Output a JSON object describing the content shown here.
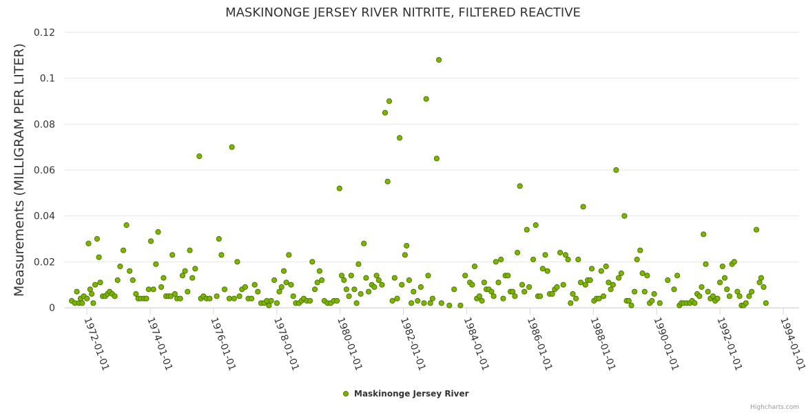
{
  "chart_data": {
    "type": "scatter",
    "title": "MASKINONGE JERSEY RIVER NITRITE, FILTERED REACTIVE",
    "xlabel": "",
    "ylabel": "Measurements (MILLIGRAM PER LITER)",
    "ylim": [
      0,
      0.12
    ],
    "yticks": [
      0,
      0.02,
      0.04,
      0.06,
      0.08,
      0.1,
      0.12
    ],
    "ytick_labels": [
      "0",
      "0.02",
      "0.04",
      "0.06",
      "0.08",
      "0.1",
      "0.12"
    ],
    "xlim": [
      1971.3,
      1994.5
    ],
    "xticks": [
      1972,
      1974,
      1976,
      1978,
      1980,
      1982,
      1984,
      1986,
      1988,
      1990,
      1992,
      1994
    ],
    "xtick_labels": [
      "1972-01-01",
      "1974-01-01",
      "1976-01-01",
      "1978-01-01",
      "1980-01-01",
      "1982-01-01",
      "1984-01-01",
      "1986-01-01",
      "1988-01-01",
      "1990-01-01",
      "1992-01-01",
      "1994-01-01"
    ],
    "grid": true,
    "legend_position": "bottom-center",
    "credits": "Highcharts.com",
    "series": [
      {
        "name": "Maskinonge Jersey River",
        "color": "#7cb400",
        "points": [
          [
            1971.52,
            0.003
          ],
          [
            1971.62,
            0.002
          ],
          [
            1971.68,
            0.007
          ],
          [
            1971.75,
            0.002
          ],
          [
            1971.8,
            0.004
          ],
          [
            1971.85,
            0.002
          ],
          [
            1971.9,
            0.005
          ],
          [
            1972.0,
            0.004
          ],
          [
            1972.05,
            0.028
          ],
          [
            1972.1,
            0.008
          ],
          [
            1972.15,
            0.006
          ],
          [
            1972.2,
            0.002
          ],
          [
            1972.26,
            0.01
          ],
          [
            1972.32,
            0.03
          ],
          [
            1972.38,
            0.022
          ],
          [
            1972.42,
            0.011
          ],
          [
            1972.5,
            0.005
          ],
          [
            1972.58,
            0.005
          ],
          [
            1972.65,
            0.006
          ],
          [
            1972.72,
            0.007
          ],
          [
            1972.8,
            0.006
          ],
          [
            1972.88,
            0.005
          ],
          [
            1972.97,
            0.012
          ],
          [
            1973.05,
            0.018
          ],
          [
            1973.15,
            0.025
          ],
          [
            1973.25,
            0.036
          ],
          [
            1973.35,
            0.016
          ],
          [
            1973.45,
            0.012
          ],
          [
            1973.55,
            0.006
          ],
          [
            1973.62,
            0.004
          ],
          [
            1973.7,
            0.004
          ],
          [
            1973.8,
            0.004
          ],
          [
            1973.88,
            0.004
          ],
          [
            1973.95,
            0.008
          ],
          [
            1974.02,
            0.029
          ],
          [
            1974.1,
            0.008
          ],
          [
            1974.18,
            0.019
          ],
          [
            1974.25,
            0.033
          ],
          [
            1974.35,
            0.009
          ],
          [
            1974.42,
            0.013
          ],
          [
            1974.5,
            0.005
          ],
          [
            1974.58,
            0.005
          ],
          [
            1974.65,
            0.005
          ],
          [
            1974.7,
            0.023
          ],
          [
            1974.78,
            0.006
          ],
          [
            1974.85,
            0.004
          ],
          [
            1974.95,
            0.004
          ],
          [
            1975.02,
            0.014
          ],
          [
            1975.1,
            0.016
          ],
          [
            1975.18,
            0.007
          ],
          [
            1975.25,
            0.025
          ],
          [
            1975.33,
            0.013
          ],
          [
            1975.42,
            0.017
          ],
          [
            1975.55,
            0.066
          ],
          [
            1975.6,
            0.004
          ],
          [
            1975.68,
            0.005
          ],
          [
            1975.78,
            0.004
          ],
          [
            1975.88,
            0.004
          ],
          [
            1976.1,
            0.005
          ],
          [
            1976.17,
            0.03
          ],
          [
            1976.25,
            0.023
          ],
          [
            1976.35,
            0.008
          ],
          [
            1976.5,
            0.004
          ],
          [
            1976.58,
            0.07
          ],
          [
            1976.65,
            0.004
          ],
          [
            1976.75,
            0.02
          ],
          [
            1976.82,
            0.005
          ],
          [
            1976.9,
            0.008
          ],
          [
            1977.0,
            0.009
          ],
          [
            1977.1,
            0.004
          ],
          [
            1977.2,
            0.004
          ],
          [
            1977.3,
            0.01
          ],
          [
            1977.4,
            0.007
          ],
          [
            1977.5,
            0.002
          ],
          [
            1977.6,
            0.002
          ],
          [
            1977.68,
            0.003
          ],
          [
            1977.75,
            0.001
          ],
          [
            1977.82,
            0.003
          ],
          [
            1977.92,
            0.012
          ],
          [
            1978.0,
            0.002
          ],
          [
            1978.08,
            0.007
          ],
          [
            1978.15,
            0.009
          ],
          [
            1978.22,
            0.016
          ],
          [
            1978.3,
            0.011
          ],
          [
            1978.38,
            0.023
          ],
          [
            1978.45,
            0.01
          ],
          [
            1978.52,
            0.005
          ],
          [
            1978.6,
            0.002
          ],
          [
            1978.7,
            0.002
          ],
          [
            1978.78,
            0.003
          ],
          [
            1978.85,
            0.004
          ],
          [
            1978.95,
            0.003
          ],
          [
            1979.05,
            0.003
          ],
          [
            1979.12,
            0.02
          ],
          [
            1979.2,
            0.008
          ],
          [
            1979.28,
            0.011
          ],
          [
            1979.35,
            0.016
          ],
          [
            1979.42,
            0.012
          ],
          [
            1979.5,
            0.003
          ],
          [
            1979.6,
            0.002
          ],
          [
            1979.7,
            0.002
          ],
          [
            1979.8,
            0.003
          ],
          [
            1979.9,
            0.003
          ],
          [
            1979.98,
            0.052
          ],
          [
            1980.05,
            0.014
          ],
          [
            1980.12,
            0.012
          ],
          [
            1980.2,
            0.008
          ],
          [
            1980.28,
            0.005
          ],
          [
            1980.35,
            0.014
          ],
          [
            1980.45,
            0.008
          ],
          [
            1980.52,
            0.002
          ],
          [
            1980.58,
            0.019
          ],
          [
            1980.65,
            0.006
          ],
          [
            1980.75,
            0.028
          ],
          [
            1980.82,
            0.013
          ],
          [
            1980.9,
            0.007
          ],
          [
            1981.0,
            0.01
          ],
          [
            1981.08,
            0.009
          ],
          [
            1981.15,
            0.014
          ],
          [
            1981.22,
            0.012
          ],
          [
            1981.32,
            0.01
          ],
          [
            1981.42,
            0.085
          ],
          [
            1981.5,
            0.055
          ],
          [
            1981.55,
            0.09
          ],
          [
            1981.65,
            0.003
          ],
          [
            1981.72,
            0.013
          ],
          [
            1981.8,
            0.004
          ],
          [
            1981.88,
            0.074
          ],
          [
            1981.95,
            0.01
          ],
          [
            1982.05,
            0.023
          ],
          [
            1982.1,
            0.027
          ],
          [
            1982.18,
            0.012
          ],
          [
            1982.25,
            0.002
          ],
          [
            1982.32,
            0.007
          ],
          [
            1982.45,
            0.003
          ],
          [
            1982.55,
            0.009
          ],
          [
            1982.65,
            0.002
          ],
          [
            1982.72,
            0.091
          ],
          [
            1982.78,
            0.014
          ],
          [
            1982.85,
            0.002
          ],
          [
            1982.92,
            0.004
          ],
          [
            1983.05,
            0.065
          ],
          [
            1983.12,
            0.108
          ],
          [
            1983.2,
            0.002
          ],
          [
            1983.45,
            0.001
          ],
          [
            1983.6,
            0.008
          ],
          [
            1983.8,
            0.001
          ],
          [
            1983.95,
            0.014
          ],
          [
            1984.1,
            0.011
          ],
          [
            1984.17,
            0.01
          ],
          [
            1984.25,
            0.018
          ],
          [
            1984.32,
            0.004
          ],
          [
            1984.4,
            0.005
          ],
          [
            1984.48,
            0.003
          ],
          [
            1984.55,
            0.011
          ],
          [
            1984.62,
            0.008
          ],
          [
            1984.7,
            0.008
          ],
          [
            1984.78,
            0.007
          ],
          [
            1984.85,
            0.005
          ],
          [
            1984.92,
            0.02
          ],
          [
            1985.0,
            0.011
          ],
          [
            1985.08,
            0.021
          ],
          [
            1985.15,
            0.004
          ],
          [
            1985.22,
            0.014
          ],
          [
            1985.3,
            0.014
          ],
          [
            1985.38,
            0.007
          ],
          [
            1985.45,
            0.007
          ],
          [
            1985.52,
            0.005
          ],
          [
            1985.6,
            0.024
          ],
          [
            1985.68,
            0.053
          ],
          [
            1985.75,
            0.01
          ],
          [
            1985.82,
            0.007
          ],
          [
            1985.9,
            0.034
          ],
          [
            1985.97,
            0.009
          ],
          [
            1986.1,
            0.021
          ],
          [
            1986.18,
            0.036
          ],
          [
            1986.25,
            0.005
          ],
          [
            1986.32,
            0.005
          ],
          [
            1986.4,
            0.017
          ],
          [
            1986.48,
            0.023
          ],
          [
            1986.55,
            0.016
          ],
          [
            1986.62,
            0.006
          ],
          [
            1986.7,
            0.006
          ],
          [
            1986.78,
            0.008
          ],
          [
            1986.85,
            0.009
          ],
          [
            1986.95,
            0.024
          ],
          [
            1987.05,
            0.01
          ],
          [
            1987.12,
            0.023
          ],
          [
            1987.2,
            0.021
          ],
          [
            1987.28,
            0.002
          ],
          [
            1987.35,
            0.006
          ],
          [
            1987.45,
            0.004
          ],
          [
            1987.52,
            0.021
          ],
          [
            1987.6,
            0.011
          ],
          [
            1987.68,
            0.044
          ],
          [
            1987.75,
            0.01
          ],
          [
            1987.82,
            0.012
          ],
          [
            1987.9,
            0.012
          ],
          [
            1987.95,
            0.017
          ],
          [
            1988.02,
            0.003
          ],
          [
            1988.1,
            0.004
          ],
          [
            1988.18,
            0.004
          ],
          [
            1988.25,
            0.016
          ],
          [
            1988.32,
            0.005
          ],
          [
            1988.4,
            0.018
          ],
          [
            1988.48,
            0.011
          ],
          [
            1988.55,
            0.008
          ],
          [
            1988.62,
            0.01
          ],
          [
            1988.72,
            0.06
          ],
          [
            1988.8,
            0.013
          ],
          [
            1988.88,
            0.015
          ],
          [
            1988.98,
            0.04
          ],
          [
            1989.05,
            0.003
          ],
          [
            1989.12,
            0.003
          ],
          [
            1989.2,
            0.001
          ],
          [
            1989.3,
            0.007
          ],
          [
            1989.38,
            0.021
          ],
          [
            1989.48,
            0.025
          ],
          [
            1989.55,
            0.015
          ],
          [
            1989.62,
            0.007
          ],
          [
            1989.7,
            0.014
          ],
          [
            1989.78,
            0.002
          ],
          [
            1989.85,
            0.003
          ],
          [
            1989.92,
            0.006
          ],
          [
            1990.1,
            0.002
          ],
          [
            1990.35,
            0.012
          ],
          [
            1990.55,
            0.008
          ],
          [
            1990.65,
            0.014
          ],
          [
            1990.72,
            0.001
          ],
          [
            1990.78,
            0.002
          ],
          [
            1990.85,
            0.002
          ],
          [
            1990.95,
            0.002
          ],
          [
            1991.05,
            0.002
          ],
          [
            1991.12,
            0.003
          ],
          [
            1991.2,
            0.002
          ],
          [
            1991.28,
            0.006
          ],
          [
            1991.35,
            0.005
          ],
          [
            1991.42,
            0.009
          ],
          [
            1991.48,
            0.032
          ],
          [
            1991.55,
            0.019
          ],
          [
            1991.62,
            0.007
          ],
          [
            1991.7,
            0.004
          ],
          [
            1991.78,
            0.005
          ],
          [
            1991.85,
            0.003
          ],
          [
            1991.92,
            0.004
          ],
          [
            1992.0,
            0.011
          ],
          [
            1992.08,
            0.018
          ],
          [
            1992.15,
            0.013
          ],
          [
            1992.22,
            0.008
          ],
          [
            1992.3,
            0.005
          ],
          [
            1992.38,
            0.019
          ],
          [
            1992.45,
            0.02
          ],
          [
            1992.55,
            0.007
          ],
          [
            1992.62,
            0.005
          ],
          [
            1992.68,
            0.001
          ],
          [
            1992.75,
            0.001
          ],
          [
            1992.82,
            0.002
          ],
          [
            1992.92,
            0.005
          ],
          [
            1993.0,
            0.007
          ],
          [
            1993.15,
            0.034
          ],
          [
            1993.25,
            0.011
          ],
          [
            1993.3,
            0.013
          ],
          [
            1993.38,
            0.009
          ],
          [
            1993.45,
            0.002
          ]
        ]
      }
    ]
  }
}
